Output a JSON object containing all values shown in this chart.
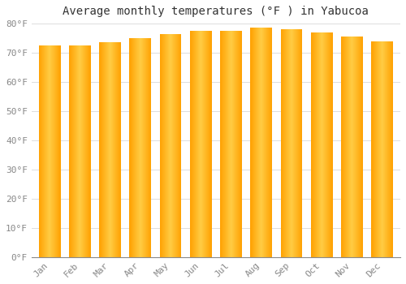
{
  "title": "Average monthly temperatures (°F ) in Yabucoa",
  "months": [
    "Jan",
    "Feb",
    "Mar",
    "Apr",
    "May",
    "Jun",
    "Jul",
    "Aug",
    "Sep",
    "Oct",
    "Nov",
    "Dec"
  ],
  "temperatures": [
    72.5,
    72.5,
    73.5,
    75.0,
    76.5,
    77.5,
    77.5,
    78.5,
    78.0,
    77.0,
    75.5,
    74.0
  ],
  "ylim": [
    0,
    80
  ],
  "yticks": [
    0,
    10,
    20,
    30,
    40,
    50,
    60,
    70,
    80
  ],
  "ytick_labels": [
    "0°F",
    "10°F",
    "20°F",
    "30°F",
    "40°F",
    "50°F",
    "60°F",
    "70°F",
    "80°F"
  ],
  "bar_color_center": "#FFCC44",
  "bar_color_edge": "#FFA000",
  "background_color": "#FFFFFF",
  "plot_bg_color": "#FFFFFF",
  "grid_color": "#DDDDDD",
  "title_fontsize": 10,
  "tick_fontsize": 8,
  "tick_color": "#888888",
  "figsize": [
    5.0,
    3.5
  ],
  "dpi": 100
}
